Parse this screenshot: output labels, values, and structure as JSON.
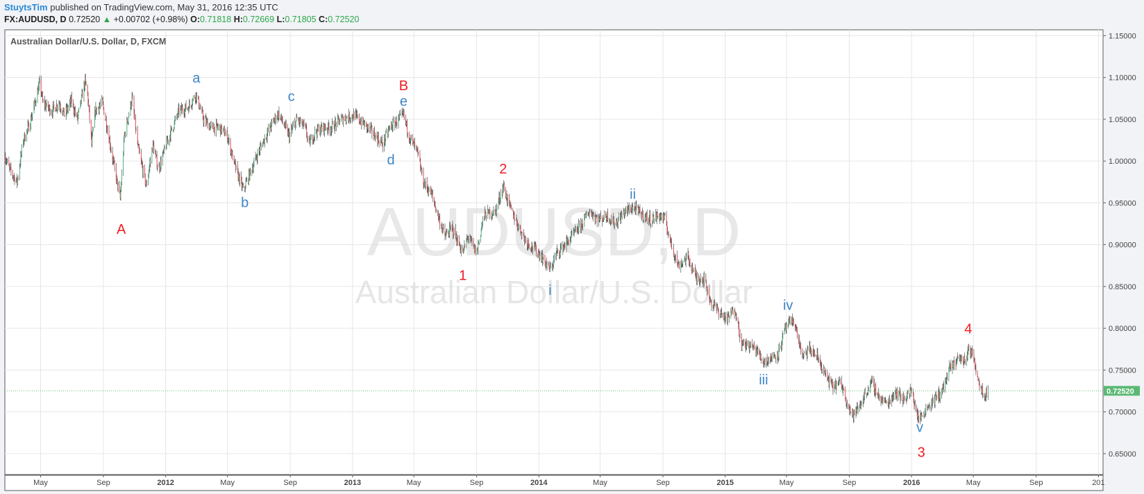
{
  "header": {
    "author": "StuytsTim",
    "published_text": "published on TradingView.com, May 31, 2016 12:35 UTC",
    "symbol": "FX:AUDUSD, D",
    "last": "0.72520",
    "arrow": "▲",
    "change": "+0.00702 (+0.98%)",
    "open_label": "O:",
    "open": "0.71818",
    "high_label": "H:",
    "high": "0.72669",
    "low_label": "L:",
    "low": "0.71805",
    "close_label": "C:",
    "close": "0.72520"
  },
  "colors": {
    "up": "#53b987",
    "down": "#eb4d5c",
    "red_wave": "#ee1c25",
    "blue_wave": "#3d85c6",
    "price_tag": "#5bb974"
  },
  "chart_data": {
    "type": "line",
    "title": "Australian Dollar/U.S. Dollar, D, FXCM",
    "watermark_symbol": "AUDUSD, D",
    "watermark_name": "Australian Dollar/U.S. Dollar",
    "ylim": [
      0.625,
      1.157
    ],
    "xlim": [
      "2011-02-20",
      "2017-01-10"
    ],
    "yticks": [
      "1.15000",
      "1.10000",
      "1.05000",
      "1.00000",
      "0.95000",
      "0.90000",
      "0.85000",
      "0.80000",
      "0.75000",
      "0.70000",
      "0.65000"
    ],
    "xticks": [
      {
        "label": "May",
        "date": "2011-05-01",
        "bold": false
      },
      {
        "label": "Sep",
        "date": "2011-09-01",
        "bold": false
      },
      {
        "label": "2012",
        "date": "2012-01-01",
        "bold": true
      },
      {
        "label": "May",
        "date": "2012-05-01",
        "bold": false
      },
      {
        "label": "Sep",
        "date": "2012-09-01",
        "bold": false
      },
      {
        "label": "2013",
        "date": "2013-01-01",
        "bold": true
      },
      {
        "label": "May",
        "date": "2013-05-01",
        "bold": false
      },
      {
        "label": "Sep",
        "date": "2013-09-01",
        "bold": false
      },
      {
        "label": "2014",
        "date": "2014-01-01",
        "bold": true
      },
      {
        "label": "May",
        "date": "2014-05-01",
        "bold": false
      },
      {
        "label": "Sep",
        "date": "2014-09-01",
        "bold": false
      },
      {
        "label": "2015",
        "date": "2015-01-01",
        "bold": true
      },
      {
        "label": "May",
        "date": "2015-05-01",
        "bold": false
      },
      {
        "label": "Sep",
        "date": "2015-09-01",
        "bold": false
      },
      {
        "label": "2016",
        "date": "2016-01-01",
        "bold": true
      },
      {
        "label": "May",
        "date": "2016-05-01",
        "bold": false
      },
      {
        "label": "Sep",
        "date": "2016-09-01",
        "bold": false
      },
      {
        "label": "201",
        "date": "2017-01-01",
        "bold": false
      }
    ],
    "last_price": 0.7252,
    "last_price_label": "0.72520",
    "series": [
      {
        "values": [
          [
            "2011-02-21",
            1.005
          ],
          [
            "2011-03-01",
            0.99
          ],
          [
            "2011-03-16",
            0.975
          ],
          [
            "2011-03-28",
            1.025
          ],
          [
            "2011-04-10",
            1.045
          ],
          [
            "2011-04-30",
            1.095
          ],
          [
            "2011-05-05",
            1.07
          ],
          [
            "2011-05-23",
            1.06
          ],
          [
            "2011-06-06",
            1.07
          ],
          [
            "2011-06-17",
            1.055
          ],
          [
            "2011-06-30",
            1.072
          ],
          [
            "2011-07-12",
            1.05
          ],
          [
            "2011-07-27",
            1.095
          ],
          [
            "2011-08-01",
            1.08
          ],
          [
            "2011-08-09",
            1.02
          ],
          [
            "2011-08-16",
            1.06
          ],
          [
            "2011-08-30",
            1.07
          ],
          [
            "2011-09-10",
            1.035
          ],
          [
            "2011-09-20",
            1.0
          ],
          [
            "2011-10-04",
            0.955
          ],
          [
            "2011-10-12",
            1.03
          ],
          [
            "2011-10-27",
            1.075
          ],
          [
            "2011-11-08",
            1.015
          ],
          [
            "2011-11-24",
            0.97
          ],
          [
            "2011-12-07",
            1.02
          ],
          [
            "2011-12-18",
            0.99
          ],
          [
            "2012-01-05",
            1.025
          ],
          [
            "2012-01-27",
            1.06
          ],
          [
            "2012-02-15",
            1.065
          ],
          [
            "2012-02-29",
            1.08
          ],
          [
            "2012-03-15",
            1.05
          ],
          [
            "2012-03-30",
            1.04
          ],
          [
            "2012-04-15",
            1.04
          ],
          [
            "2012-05-01",
            1.03
          ],
          [
            "2012-05-15",
            0.995
          ],
          [
            "2012-06-01",
            0.965
          ],
          [
            "2012-06-14",
            0.985
          ],
          [
            "2012-06-30",
            1.01
          ],
          [
            "2012-07-15",
            1.03
          ],
          [
            "2012-08-01",
            1.05
          ],
          [
            "2012-08-09",
            1.057
          ],
          [
            "2012-08-30",
            1.03
          ],
          [
            "2012-09-14",
            1.05
          ],
          [
            "2012-09-30",
            1.04
          ],
          [
            "2012-10-08",
            1.02
          ],
          [
            "2012-10-20",
            1.035
          ],
          [
            "2012-11-05",
            1.04
          ],
          [
            "2012-11-20",
            1.04
          ],
          [
            "2012-12-10",
            1.05
          ],
          [
            "2013-01-03",
            1.055
          ],
          [
            "2013-01-22",
            1.045
          ],
          [
            "2013-02-08",
            1.035
          ],
          [
            "2013-03-01",
            1.02
          ],
          [
            "2013-03-15",
            1.04
          ],
          [
            "2013-04-11",
            1.055
          ],
          [
            "2013-04-22",
            1.03
          ],
          [
            "2013-05-08",
            1.01
          ],
          [
            "2013-05-20",
            0.975
          ],
          [
            "2013-06-05",
            0.96
          ],
          [
            "2013-06-20",
            0.93
          ],
          [
            "2013-07-01",
            0.91
          ],
          [
            "2013-07-15",
            0.92
          ],
          [
            "2013-08-05",
            0.89
          ],
          [
            "2013-08-15",
            0.91
          ],
          [
            "2013-09-01",
            0.89
          ],
          [
            "2013-09-15",
            0.935
          ],
          [
            "2013-10-08",
            0.94
          ],
          [
            "2013-10-23",
            0.97
          ],
          [
            "2013-11-05",
            0.945
          ],
          [
            "2013-11-20",
            0.925
          ],
          [
            "2013-12-06",
            0.905
          ],
          [
            "2014-01-01",
            0.89
          ],
          [
            "2014-01-23",
            0.87
          ],
          [
            "2014-02-05",
            0.89
          ],
          [
            "2014-02-21",
            0.9
          ],
          [
            "2014-03-07",
            0.91
          ],
          [
            "2014-03-26",
            0.925
          ],
          [
            "2014-04-10",
            0.94
          ],
          [
            "2014-04-28",
            0.93
          ],
          [
            "2014-05-15",
            0.935
          ],
          [
            "2014-05-30",
            0.925
          ],
          [
            "2014-06-20",
            0.94
          ],
          [
            "2014-07-04",
            0.945
          ],
          [
            "2014-07-25",
            0.935
          ],
          [
            "2014-08-08",
            0.93
          ],
          [
            "2014-08-25",
            0.935
          ],
          [
            "2014-09-05",
            0.93
          ],
          [
            "2014-09-15",
            0.905
          ],
          [
            "2014-10-01",
            0.875
          ],
          [
            "2014-10-20",
            0.885
          ],
          [
            "2014-11-05",
            0.86
          ],
          [
            "2014-11-20",
            0.86
          ],
          [
            "2014-12-05",
            0.83
          ],
          [
            "2014-12-20",
            0.82
          ],
          [
            "2015-01-05",
            0.81
          ],
          [
            "2015-01-20",
            0.825
          ],
          [
            "2015-02-02",
            0.78
          ],
          [
            "2015-02-16",
            0.78
          ],
          [
            "2015-03-02",
            0.775
          ],
          [
            "2015-03-17",
            0.76
          ],
          [
            "2015-04-02",
            0.765
          ],
          [
            "2015-04-15",
            0.77
          ],
          [
            "2015-04-29",
            0.8
          ],
          [
            "2015-05-15",
            0.81
          ],
          [
            "2015-06-02",
            0.765
          ],
          [
            "2015-06-15",
            0.775
          ],
          [
            "2015-07-01",
            0.765
          ],
          [
            "2015-07-15",
            0.745
          ],
          [
            "2015-07-30",
            0.73
          ],
          [
            "2015-08-15",
            0.735
          ],
          [
            "2015-09-07",
            0.695
          ],
          [
            "2015-09-20",
            0.705
          ],
          [
            "2015-10-05",
            0.725
          ],
          [
            "2015-10-15",
            0.735
          ],
          [
            "2015-11-01",
            0.715
          ],
          [
            "2015-11-15",
            0.71
          ],
          [
            "2015-12-01",
            0.725
          ],
          [
            "2015-12-15",
            0.715
          ],
          [
            "2016-01-01",
            0.725
          ],
          [
            "2016-01-15",
            0.69
          ],
          [
            "2016-01-31",
            0.705
          ],
          [
            "2016-02-15",
            0.715
          ],
          [
            "2016-03-01",
            0.725
          ],
          [
            "2016-03-15",
            0.75
          ],
          [
            "2016-04-01",
            0.765
          ],
          [
            "2016-04-15",
            0.76
          ],
          [
            "2016-04-21",
            0.775
          ],
          [
            "2016-05-02",
            0.765
          ],
          [
            "2016-05-12",
            0.735
          ],
          [
            "2016-05-23",
            0.72
          ],
          [
            "2016-05-31",
            0.7252
          ]
        ]
      }
    ],
    "annotations": [
      {
        "text": "A",
        "date": "2011-10-06",
        "price": 0.913,
        "color": "red"
      },
      {
        "text": "a",
        "date": "2012-03-01",
        "price": 1.094,
        "color": "blue"
      },
      {
        "text": "b",
        "date": "2012-06-04",
        "price": 0.945,
        "color": "blue"
      },
      {
        "text": "c",
        "date": "2012-09-03",
        "price": 1.072,
        "color": "blue"
      },
      {
        "text": "d",
        "date": "2013-03-17",
        "price": 0.996,
        "color": "blue"
      },
      {
        "text": "B",
        "date": "2013-04-11",
        "price": 1.085,
        "color": "red"
      },
      {
        "text": "e",
        "date": "2013-04-11",
        "price": 1.066,
        "color": "blue"
      },
      {
        "text": "1",
        "date": "2013-08-05",
        "price": 0.858,
        "color": "red"
      },
      {
        "text": "2",
        "date": "2013-10-23",
        "price": 0.985,
        "color": "red"
      },
      {
        "text": "i",
        "date": "2014-01-23",
        "price": 0.84,
        "color": "blue"
      },
      {
        "text": "ii",
        "date": "2014-07-04",
        "price": 0.955,
        "color": "blue"
      },
      {
        "text": "iii",
        "date": "2015-03-17",
        "price": 0.733,
        "color": "blue"
      },
      {
        "text": "iv",
        "date": "2015-05-04",
        "price": 0.822,
        "color": "blue"
      },
      {
        "text": "v",
        "date": "2016-01-17",
        "price": 0.676,
        "color": "blue"
      },
      {
        "text": "3",
        "date": "2016-01-20",
        "price": 0.646,
        "color": "red"
      },
      {
        "text": "4",
        "date": "2016-04-21",
        "price": 0.794,
        "color": "red"
      }
    ]
  }
}
